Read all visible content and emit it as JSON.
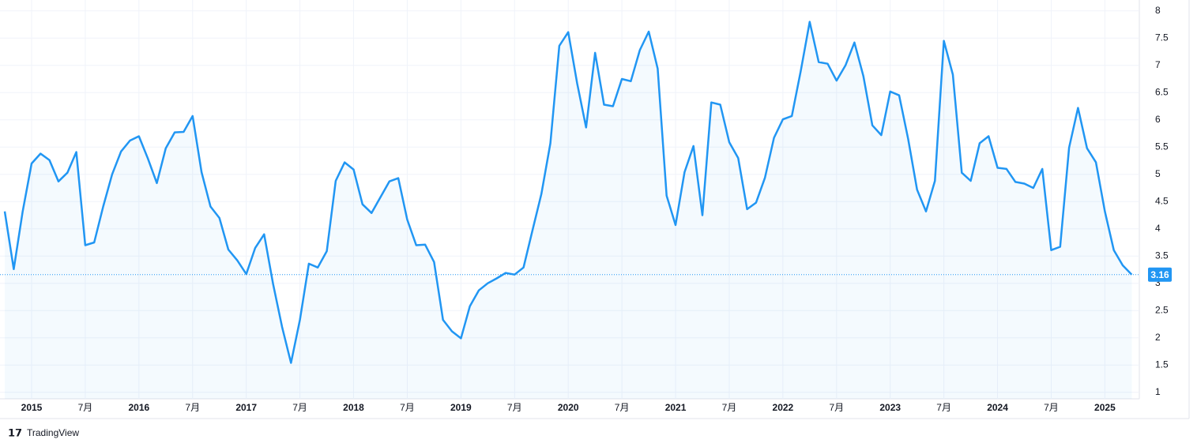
{
  "chart_data": {
    "type": "area",
    "categories": [
      null,
      null,
      null,
      "2015",
      null,
      null,
      null,
      null,
      null,
      "7月",
      null,
      null,
      null,
      null,
      null,
      "2016",
      null,
      null,
      null,
      null,
      null,
      "7月",
      null,
      null,
      null,
      null,
      null,
      "2017",
      null,
      null,
      null,
      null,
      null,
      "7月",
      null,
      null,
      null,
      null,
      null,
      "2018",
      null,
      null,
      null,
      null,
      null,
      "7月",
      null,
      null,
      null,
      null,
      null,
      "2019",
      null,
      null,
      null,
      null,
      null,
      "7月",
      null,
      null,
      null,
      null,
      null,
      "2020",
      null,
      null,
      null,
      null,
      null,
      "7月",
      null,
      null,
      null,
      null,
      null,
      "2021",
      null,
      null,
      null,
      null,
      null,
      "7月",
      null,
      null,
      null,
      null,
      null,
      "2022",
      null,
      null,
      null,
      null,
      null,
      "7月",
      null,
      null,
      null,
      null,
      null,
      "2023",
      null,
      null,
      null,
      null,
      null,
      "7月",
      null,
      null,
      null,
      null,
      null,
      "2024",
      null,
      null,
      null,
      null,
      null,
      "7月",
      null,
      null,
      null,
      null,
      null,
      "2025",
      null,
      null,
      null
    ],
    "values": [
      4.32,
      3.26,
      4.32,
      5.2,
      5.38,
      5.26,
      4.87,
      5.03,
      5.41,
      3.7,
      3.75,
      4.41,
      5.0,
      5.42,
      5.62,
      5.7,
      5.29,
      4.84,
      5.48,
      5.77,
      5.78,
      6.07,
      5.04,
      4.41,
      4.2,
      3.62,
      3.42,
      3.17,
      3.65,
      3.9,
      2.99,
      2.2,
      1.54,
      2.33,
      3.36,
      3.29,
      3.59,
      4.88,
      5.22,
      5.09,
      4.45,
      4.29,
      4.58,
      4.87,
      4.93,
      4.17,
      3.7,
      3.71,
      3.39,
      2.33,
      2.12,
      1.99,
      2.58,
      2.87,
      3.0,
      3.09,
      3.19,
      3.16,
      3.29,
      3.97,
      4.64,
      5.57,
      7.36,
      7.61,
      6.67,
      5.86,
      7.23,
      6.28,
      6.25,
      6.75,
      6.71,
      7.28,
      7.62,
      6.94,
      4.61,
      4.07,
      5.04,
      5.52,
      4.25,
      6.32,
      6.28,
      5.59,
      5.3,
      4.36,
      4.48,
      4.94,
      5.67,
      6.01,
      6.07,
      6.9,
      7.8,
      7.06,
      7.03,
      6.72,
      7.0,
      7.42,
      6.8,
      5.9,
      5.72,
      6.52,
      6.45,
      5.65,
      4.72,
      4.32,
      4.88,
      7.45,
      6.83,
      5.03,
      4.88,
      5.57,
      5.7,
      5.12,
      5.1,
      4.86,
      4.83,
      4.75,
      5.1,
      3.61,
      3.67,
      5.49,
      6.22,
      5.48,
      5.22,
      4.32,
      3.61,
      3.33,
      3.16
    ],
    "color": "#2196f3",
    "ylim": [
      0.88,
      8.2
    ],
    "yticks": [
      1,
      1.5,
      2,
      2.5,
      3,
      3.5,
      4,
      4.5,
      5,
      5.5,
      6,
      6.5,
      7,
      7.5,
      8
    ],
    "grid": true
  },
  "branding": "TradingView"
}
